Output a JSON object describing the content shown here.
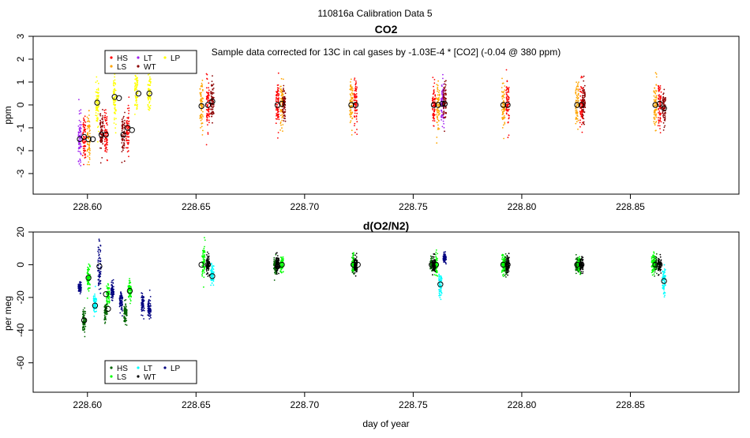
{
  "figure_title": "110816a   Calibration Data 5",
  "xlabel": "day of year",
  "chart_data": [
    {
      "type": "scatter",
      "title": "CO2",
      "ylabel": "ppm",
      "xlim": [
        228.575,
        228.9
      ],
      "ylim": [
        -3.9,
        3.0
      ],
      "xticks": [
        "228.60",
        "228.65",
        "228.70",
        "228.75",
        "228.80",
        "228.85"
      ],
      "xtick_values": [
        228.6,
        228.65,
        228.7,
        228.75,
        228.8,
        228.85
      ],
      "yticks": [
        "-3",
        "-2",
        "-1",
        "0",
        "1",
        "2",
        "3"
      ],
      "ytick_values": [
        -3,
        -2,
        -1,
        0,
        1,
        2,
        3
      ],
      "annotation": "Sample data corrected for 13C in cal gases by -1.03E-4 * [CO2] (-0.04 @ 380 ppm)",
      "legend": {
        "placement": "top-left",
        "entries": [
          {
            "label": "HS",
            "color": "#ff0000"
          },
          {
            "label": "LT",
            "color": "#a020f0"
          },
          {
            "label": "LP",
            "color": "#ffff00"
          },
          {
            "label": "LS",
            "color": "#ffa500"
          },
          {
            "label": "WT",
            "color": "#8b0000"
          }
        ]
      },
      "series": [
        {
          "name": "HS",
          "color": "#ff0000",
          "clusters": [
            {
              "x": 228.5985,
              "y": -1.4,
              "sd": 0.5
            },
            {
              "x": 228.6085,
              "y": -1.3,
              "sd": 0.5
            },
            {
              "x": 228.6185,
              "y": -1.1,
              "sd": 0.5
            },
            {
              "x": 228.6555,
              "y": 0.0,
              "sd": 0.5
            },
            {
              "x": 228.6875,
              "y": 0.0,
              "sd": 0.5
            },
            {
              "x": 228.7235,
              "y": 0.0,
              "sd": 0.5
            },
            {
              "x": 228.7595,
              "y": 0.0,
              "sd": 0.5
            },
            {
              "x": 228.7935,
              "y": 0.0,
              "sd": 0.5
            },
            {
              "x": 228.8275,
              "y": 0.0,
              "sd": 0.5
            },
            {
              "x": 228.8635,
              "y": 0.0,
              "sd": 0.5
            }
          ]
        },
        {
          "name": "LT",
          "color": "#a020f0",
          "clusters": [
            {
              "x": 228.5965,
              "y": -1.5,
              "sd": 0.55
            },
            {
              "x": 228.7635,
              "y": 0.05,
              "sd": 0.5
            }
          ]
        },
        {
          "name": "LP",
          "color": "#ffff00",
          "clusters": [
            {
              "x": 228.6045,
              "y": 0.1,
              "sd": 0.6
            },
            {
              "x": 228.6125,
              "y": 0.35,
              "sd": 0.6
            },
            {
              "x": 228.6225,
              "y": 0.5,
              "sd": 0.5
            },
            {
              "x": 228.6285,
              "y": 0.5,
              "sd": 0.45
            }
          ]
        },
        {
          "name": "LS",
          "color": "#ffa500",
          "clusters": [
            {
              "x": 228.6005,
              "y": -1.5,
              "sd": 0.55
            },
            {
              "x": 228.6525,
              "y": 0.0,
              "sd": 0.5
            },
            {
              "x": 228.6895,
              "y": 0.05,
              "sd": 0.5
            },
            {
              "x": 228.7215,
              "y": 0.0,
              "sd": 0.5
            },
            {
              "x": 228.7615,
              "y": 0.0,
              "sd": 0.5
            },
            {
              "x": 228.7915,
              "y": 0.0,
              "sd": 0.5
            },
            {
              "x": 228.8255,
              "y": 0.0,
              "sd": 0.5
            },
            {
              "x": 228.8615,
              "y": 0.05,
              "sd": 0.5
            }
          ]
        },
        {
          "name": "WT",
          "color": "#8b0000",
          "clusters": [
            {
              "x": 228.6065,
              "y": -1.3,
              "sd": 0.5
            },
            {
              "x": 228.6165,
              "y": -1.3,
              "sd": 0.5
            },
            {
              "x": 228.6575,
              "y": 0.15,
              "sd": 0.45
            },
            {
              "x": 228.6905,
              "y": 0.0,
              "sd": 0.4
            },
            {
              "x": 228.7645,
              "y": 0.05,
              "sd": 0.4
            },
            {
              "x": 228.8285,
              "y": 0.0,
              "sd": 0.4
            },
            {
              "x": 228.8655,
              "y": -0.15,
              "sd": 0.45
            }
          ]
        }
      ],
      "means": [
        {
          "x": 228.5965,
          "y": -1.5
        },
        {
          "x": 228.5985,
          "y": -1.4
        },
        {
          "x": 228.6005,
          "y": -1.5
        },
        {
          "x": 228.6025,
          "y": -1.5
        },
        {
          "x": 228.6045,
          "y": 0.1
        },
        {
          "x": 228.6065,
          "y": -1.3
        },
        {
          "x": 228.6085,
          "y": -1.3
        },
        {
          "x": 228.6125,
          "y": 0.35
        },
        {
          "x": 228.6145,
          "y": 0.3
        },
        {
          "x": 228.6165,
          "y": -1.3
        },
        {
          "x": 228.6185,
          "y": -1.0
        },
        {
          "x": 228.6205,
          "y": -1.1
        },
        {
          "x": 228.6235,
          "y": 0.5
        },
        {
          "x": 228.6285,
          "y": 0.5
        },
        {
          "x": 228.6525,
          "y": -0.05
        },
        {
          "x": 228.6555,
          "y": 0.0
        },
        {
          "x": 228.6575,
          "y": 0.15
        },
        {
          "x": 228.6875,
          "y": 0.0
        },
        {
          "x": 228.6895,
          "y": 0.05
        },
        {
          "x": 228.7215,
          "y": 0.0
        },
        {
          "x": 228.7235,
          "y": 0.0
        },
        {
          "x": 228.7595,
          "y": 0.0
        },
        {
          "x": 228.7615,
          "y": 0.0
        },
        {
          "x": 228.7635,
          "y": 0.05
        },
        {
          "x": 228.7645,
          "y": 0.05
        },
        {
          "x": 228.7915,
          "y": 0.0
        },
        {
          "x": 228.7935,
          "y": 0.0
        },
        {
          "x": 228.8255,
          "y": 0.0
        },
        {
          "x": 228.8275,
          "y": 0.0
        },
        {
          "x": 228.8615,
          "y": 0.0
        },
        {
          "x": 228.8635,
          "y": 0.05
        },
        {
          "x": 228.8655,
          "y": -0.15
        }
      ]
    },
    {
      "type": "scatter",
      "title": "d(O2/N2)",
      "ylabel": "per meg",
      "xlim": [
        228.575,
        228.9
      ],
      "ylim": [
        -78,
        20
      ],
      "xticks": [
        "228.60",
        "228.65",
        "228.70",
        "228.75",
        "228.80",
        "228.85"
      ],
      "xtick_values": [
        228.6,
        228.65,
        228.7,
        228.75,
        228.8,
        228.85
      ],
      "yticks": [
        "-60",
        "-40",
        "-20",
        "0",
        "20"
      ],
      "ytick_values": [
        -60,
        -40,
        -20,
        0,
        20
      ],
      "legend": {
        "placement": "bottom-left",
        "entries": [
          {
            "label": "HS",
            "color": "#006400"
          },
          {
            "label": "LT",
            "color": "#00ffff"
          },
          {
            "label": "LP",
            "color": "#000080"
          },
          {
            "label": "LS",
            "color": "#00ff00"
          },
          {
            "label": "WT",
            "color": "#000000"
          }
        ]
      },
      "series": [
        {
          "name": "HS",
          "color": "#006400",
          "clusters": [
            {
              "x": 228.5985,
              "y": -34,
              "sd": 3
            },
            {
              "x": 228.6085,
              "y": -28,
              "sd": 3
            },
            {
              "x": 228.6175,
              "y": -29,
              "sd": 3
            },
            {
              "x": 228.6865,
              "y": -1,
              "sd": 2.5
            },
            {
              "x": 228.7225,
              "y": 0,
              "sd": 2.5
            },
            {
              "x": 228.7585,
              "y": 0,
              "sd": 2.5
            },
            {
              "x": 228.7925,
              "y": 0,
              "sd": 2.5
            },
            {
              "x": 228.8255,
              "y": 0,
              "sd": 2.5
            },
            {
              "x": 228.8615,
              "y": 0,
              "sd": 2.5
            }
          ]
        },
        {
          "name": "LT",
          "color": "#00ffff",
          "clusters": [
            {
              "x": 228.6035,
              "y": -24,
              "sd": 3
            },
            {
              "x": 228.6575,
              "y": -6,
              "sd": 3
            },
            {
              "x": 228.7625,
              "y": -12,
              "sd": 4
            },
            {
              "x": 228.8655,
              "y": -10,
              "sd": 4
            }
          ]
        },
        {
          "name": "LP",
          "color": "#000080",
          "clusters": [
            {
              "x": 228.5965,
              "y": -14,
              "sd": 1.5
            },
            {
              "x": 228.6055,
              "y": -3,
              "sd": 8
            },
            {
              "x": 228.6115,
              "y": -16,
              "sd": 3
            },
            {
              "x": 228.6155,
              "y": -22,
              "sd": 3
            },
            {
              "x": 228.6255,
              "y": -24,
              "sd": 3
            },
            {
              "x": 228.6285,
              "y": -27,
              "sd": 3
            },
            {
              "x": 228.7645,
              "y": 4,
              "sd": 1.5
            }
          ]
        },
        {
          "name": "LS",
          "color": "#00ff00",
          "clusters": [
            {
              "x": 228.6005,
              "y": -8,
              "sd": 4
            },
            {
              "x": 228.6095,
              "y": -18,
              "sd": 3
            },
            {
              "x": 228.6195,
              "y": -16,
              "sd": 3
            },
            {
              "x": 228.6535,
              "y": 3,
              "sd": 6
            },
            {
              "x": 228.6895,
              "y": 0,
              "sd": 3
            },
            {
              "x": 228.7225,
              "y": 0,
              "sd": 3
            },
            {
              "x": 228.7605,
              "y": 0,
              "sd": 3
            },
            {
              "x": 228.7915,
              "y": 0,
              "sd": 3
            },
            {
              "x": 228.8265,
              "y": 0,
              "sd": 2.5
            },
            {
              "x": 228.8605,
              "y": 0,
              "sd": 3
            }
          ]
        },
        {
          "name": "WT",
          "color": "#000000",
          "clusters": [
            {
              "x": 228.6555,
              "y": 0,
              "sd": 3
            },
            {
              "x": 228.6875,
              "y": 1,
              "sd": 2.5
            },
            {
              "x": 228.7235,
              "y": 0,
              "sd": 2.5
            },
            {
              "x": 228.7595,
              "y": 0,
              "sd": 2.5
            },
            {
              "x": 228.7935,
              "y": 0,
              "sd": 2.5
            },
            {
              "x": 228.8275,
              "y": 0,
              "sd": 2.5
            },
            {
              "x": 228.8635,
              "y": 0,
              "sd": 2.5
            }
          ]
        }
      ],
      "means": [
        {
          "x": 228.5985,
          "y": -34
        },
        {
          "x": 228.6005,
          "y": -8
        },
        {
          "x": 228.6035,
          "y": -25
        },
        {
          "x": 228.6055,
          "y": -1
        },
        {
          "x": 228.6085,
          "y": -18
        },
        {
          "x": 228.6095,
          "y": -27
        },
        {
          "x": 228.6195,
          "y": -16
        },
        {
          "x": 228.6525,
          "y": 0
        },
        {
          "x": 228.6555,
          "y": 0
        },
        {
          "x": 228.6575,
          "y": -7
        },
        {
          "x": 228.6875,
          "y": -1
        },
        {
          "x": 228.6895,
          "y": 0
        },
        {
          "x": 228.7225,
          "y": 0
        },
        {
          "x": 228.7245,
          "y": 0
        },
        {
          "x": 228.7585,
          "y": 0
        },
        {
          "x": 228.7605,
          "y": 0
        },
        {
          "x": 228.7625,
          "y": -12
        },
        {
          "x": 228.7915,
          "y": 0
        },
        {
          "x": 228.7935,
          "y": 0
        },
        {
          "x": 228.8255,
          "y": 0
        },
        {
          "x": 228.8275,
          "y": 0
        },
        {
          "x": 228.8615,
          "y": 0
        },
        {
          "x": 228.8635,
          "y": 0
        },
        {
          "x": 228.8655,
          "y": -10
        }
      ]
    }
  ]
}
